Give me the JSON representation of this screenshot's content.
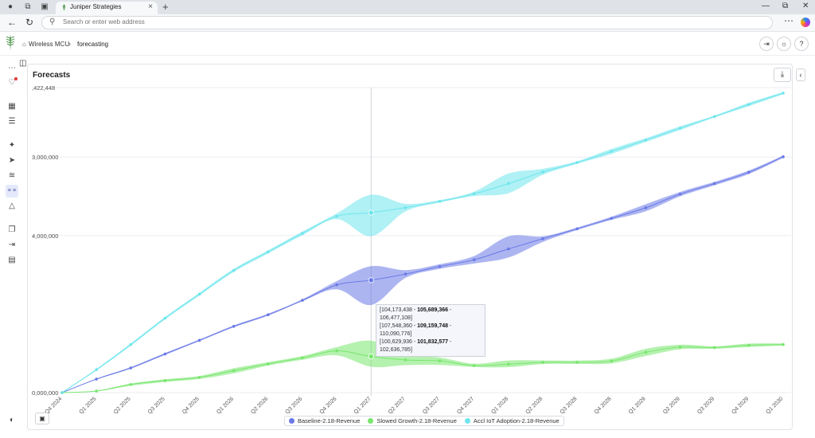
{
  "browser": {
    "tab_title": "Juniper Strategies",
    "address_placeholder": "Search or enter web address"
  },
  "header": {
    "breadcrumb_root": "Wireless MCU",
    "breadcrumb_current": "forecasting"
  },
  "card": {
    "title": "Forecasts"
  },
  "tooltip": [
    {
      "low": "104,173,438",
      "mid": "105,689,366",
      "high": "106,477,108"
    },
    {
      "low": "107,548,360",
      "mid": "109,159,748",
      "high": "110,090,776"
    },
    {
      "low": "100,629,936",
      "mid": "101,832,577",
      "high": "102,636,785"
    }
  ],
  "colors": {
    "baseline": "#6979e6",
    "slowed": "#79e66e",
    "accl": "#6ee6ec",
    "accent": "#2d3b8f"
  },
  "icons": [
    "profile-icon",
    "workspaces-icon",
    "tab-actions-icon",
    "back-icon",
    "refresh-icon",
    "search-icon",
    "more-icon",
    "copilot-icon",
    "home-icon",
    "export-icon",
    "theme-icon",
    "help-icon",
    "download-icon",
    "image-export-icon",
    "sidebar-toggle-icon",
    "chevron-left-icon"
  ],
  "chart_data": {
    "type": "line",
    "title": "",
    "xlabel": "",
    "ylabel": "",
    "ytick_labels": [
      ",422,448",
      "3,000,000",
      "4,000,000",
      "0,000,000"
    ],
    "ylim": [
      100000000,
      119422448
    ],
    "x": [
      "Q4 2024",
      "Q1 2025",
      "Q2 2025",
      "Q3 2025",
      "Q4 2025",
      "Q1 2026",
      "Q2 2026",
      "Q3 2026",
      "Q4 2026",
      "Q1 2027",
      "Q2 2027",
      "Q3 2027",
      "Q4 2027",
      "Q1 2028",
      "Q2 2028",
      "Q3 2028",
      "Q4 2028",
      "Q1 2029",
      "Q2 2029",
      "Q3 2029",
      "Q4 2029",
      "Q1 2030"
    ],
    "highlight_x": "Q1 2027",
    "grid": true,
    "legend_position": "bottom",
    "series": [
      {
        "name": "Baseline-2.18-Revenue",
        "color_key": "baseline",
        "values": [
          100000000,
          100860000,
          101570000,
          102460000,
          103330000,
          104220000,
          104960000,
          105880000,
          106860000,
          107160000,
          107550000,
          108030000,
          108460000,
          109150000,
          109800000,
          110430000,
          111100000,
          111770000,
          112640000,
          113310000,
          114030000,
          115020000
        ],
        "lower": [
          100000000,
          100830000,
          101520000,
          102400000,
          103280000,
          104160000,
          104900000,
          105820000,
          106580000,
          105580000,
          107300000,
          107880000,
          108220000,
          108600000,
          109600000,
          110350000,
          111000000,
          111550000,
          112500000,
          113200000,
          113920000,
          114950000
        ],
        "upper": [
          100000000,
          100890000,
          101620000,
          102520000,
          103380000,
          104280000,
          105020000,
          105940000,
          107100000,
          108050000,
          107800000,
          108180000,
          108700000,
          109950000,
          109950000,
          110510000,
          111200000,
          112000000,
          112780000,
          113420000,
          114140000,
          115090000
        ]
      },
      {
        "name": "Slowed Growth-2.18-Revenue",
        "color_key": "slowed",
        "values": [
          100000000,
          100100000,
          100520000,
          100770000,
          100970000,
          101400000,
          101830000,
          102210000,
          102660000,
          102300000,
          102080000,
          102020000,
          101720000,
          101810000,
          101930000,
          101930000,
          102010000,
          102570000,
          102900000,
          102870000,
          103020000,
          103060000
        ],
        "lower": [
          100000000,
          100080000,
          100440000,
          100670000,
          100870000,
          101230000,
          101720000,
          102090000,
          102370000,
          101650000,
          101750000,
          101760000,
          101630000,
          101620000,
          101820000,
          101830000,
          101860000,
          102330000,
          102760000,
          102790000,
          102900000,
          102990000
        ],
        "upper": [
          100000000,
          100120000,
          100580000,
          100850000,
          101060000,
          101550000,
          101940000,
          102330000,
          102900000,
          103300000,
          102420000,
          102240000,
          101840000,
          102050000,
          102050000,
          102040000,
          102160000,
          102790000,
          103050000,
          102950000,
          103120000,
          103130000
        ]
      },
      {
        "name": "Accl IoT Adoption-2.18-Revenue",
        "color_key": "accl",
        "values": [
          100000000,
          101460000,
          103060000,
          104740000,
          106270000,
          107780000,
          108960000,
          110140000,
          111230000,
          111460000,
          111780000,
          112180000,
          112660000,
          113310000,
          114050000,
          114650000,
          115360000,
          116080000,
          116840000,
          117580000,
          118350000,
          119070000
        ],
        "lower": [
          100000000,
          101410000,
          102980000,
          104660000,
          106180000,
          107680000,
          108860000,
          110020000,
          111050000,
          109960000,
          111540000,
          112100000,
          112520000,
          112700000,
          113870000,
          114570000,
          115200000,
          115960000,
          116720000,
          117520000,
          118240000,
          119000000
        ],
        "upper": [
          100000000,
          101510000,
          103140000,
          104820000,
          106360000,
          107880000,
          109060000,
          110260000,
          111410000,
          112600000,
          112020000,
          112260000,
          112800000,
          113950000,
          114250000,
          114730000,
          115520000,
          116200000,
          116960000,
          117640000,
          118460000,
          119140000
        ]
      }
    ]
  }
}
